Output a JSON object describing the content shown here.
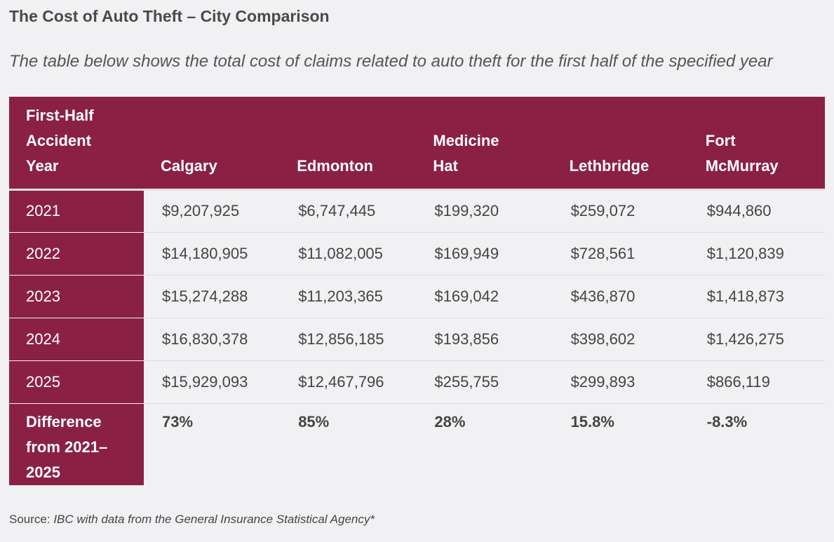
{
  "title": "The Cost of Auto Theft – City Comparison",
  "subtitle": "The table below shows the total cost of claims related to auto theft for the first half of the specified year",
  "table": {
    "header": [
      "First-Half Accident Year",
      "Calgary",
      "Edmonton",
      "Medicine Hat",
      "Lethbridge",
      "Fort McMurray"
    ],
    "rows": [
      [
        "2021",
        "$9,207,925",
        "$6,747,445",
        "$199,320",
        "$259,072",
        "$944,860"
      ],
      [
        "2022",
        "$14,180,905",
        "$11,082,005",
        "$169,949",
        "$728,561",
        "$1,120,839"
      ],
      [
        "2023",
        "$15,274,288",
        "$11,203,365",
        "$169,042",
        "$436,870",
        "$1,418,873"
      ],
      [
        "2024",
        "$16,830,378",
        "$12,856,185",
        "$193,856",
        "$398,602",
        "$1,426,275"
      ],
      [
        "2025",
        "$15,929,093",
        "$12,467,796",
        "$255,755",
        "$299,893",
        "$866,119"
      ]
    ],
    "footer": [
      "Difference from 2021–2025",
      "73%",
      "85%",
      "28%",
      "15.8%",
      "-8.3%"
    ]
  },
  "source": {
    "label": "Source:",
    "text": "IBC with data from the General Insurance Statistical Agency*"
  }
}
